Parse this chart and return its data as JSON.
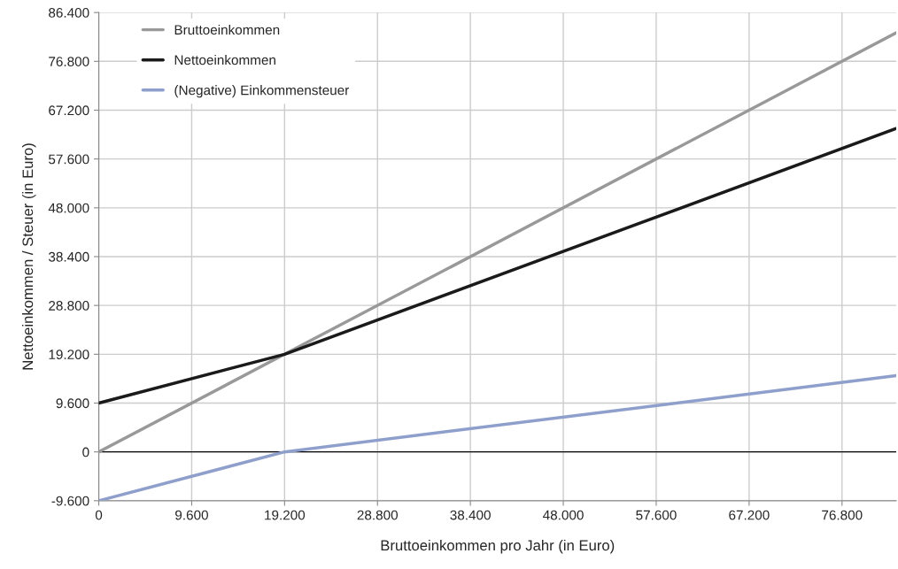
{
  "chart_data": {
    "type": "line",
    "xlabel": "Bruttoeinkommen pro Jahr (in Euro)",
    "ylabel": "Nettoeinkommen / Steuer (in Euro)",
    "series": [
      {
        "name": "Bruttoeinkommen",
        "color": "#999999",
        "x": [
          0,
          19200,
          82400
        ],
        "values": [
          0,
          19200,
          82400
        ]
      },
      {
        "name": "Nettoeinkommen",
        "color": "#1a1a1a",
        "x": [
          0,
          19200,
          82400
        ],
        "values": [
          9600,
          19200,
          63600
        ]
      },
      {
        "name": "(Negative) Einkommensteuer",
        "color": "#8f9fcc",
        "x": [
          0,
          19200,
          82400
        ],
        "values": [
          -9600,
          0,
          15000
        ]
      }
    ],
    "xlim": [
      0,
      82400
    ],
    "xticks": [
      0,
      {
        "value": 9600,
        "label": "9.600"
      },
      {
        "value": 19200,
        "label": "19.200"
      },
      {
        "value": 28800,
        "label": "28.800"
      },
      {
        "value": 38400,
        "label": "38.400"
      },
      {
        "value": 48000,
        "label": "48.000"
      },
      {
        "value": 57600,
        "label": "57.600"
      },
      {
        "value": 67200,
        "label": "67.200"
      },
      {
        "value": 76800,
        "label": "76.800"
      }
    ],
    "ylim": [
      -9600,
      86400
    ],
    "yticks": [
      {
        "value": -9600,
        "label": "-9.600"
      },
      0,
      {
        "value": 9600,
        "label": "9.600"
      },
      {
        "value": 19200,
        "label": "19.200"
      },
      {
        "value": 28800,
        "label": "28.800"
      },
      {
        "value": 38400,
        "label": "38.400"
      },
      {
        "value": 48000,
        "label": "48.000"
      },
      {
        "value": 57600,
        "label": "57.600"
      },
      {
        "value": 67200,
        "label": "67.200"
      },
      {
        "value": 76800,
        "label": "76.800"
      },
      {
        "value": 86400,
        "label": "86.400"
      }
    ],
    "ref_lines": [
      {
        "axis": "y",
        "value": 0,
        "color": "#000000"
      }
    ],
    "grid": true,
    "legend": "top left",
    "line_style": "solid",
    "marker": "none"
  }
}
